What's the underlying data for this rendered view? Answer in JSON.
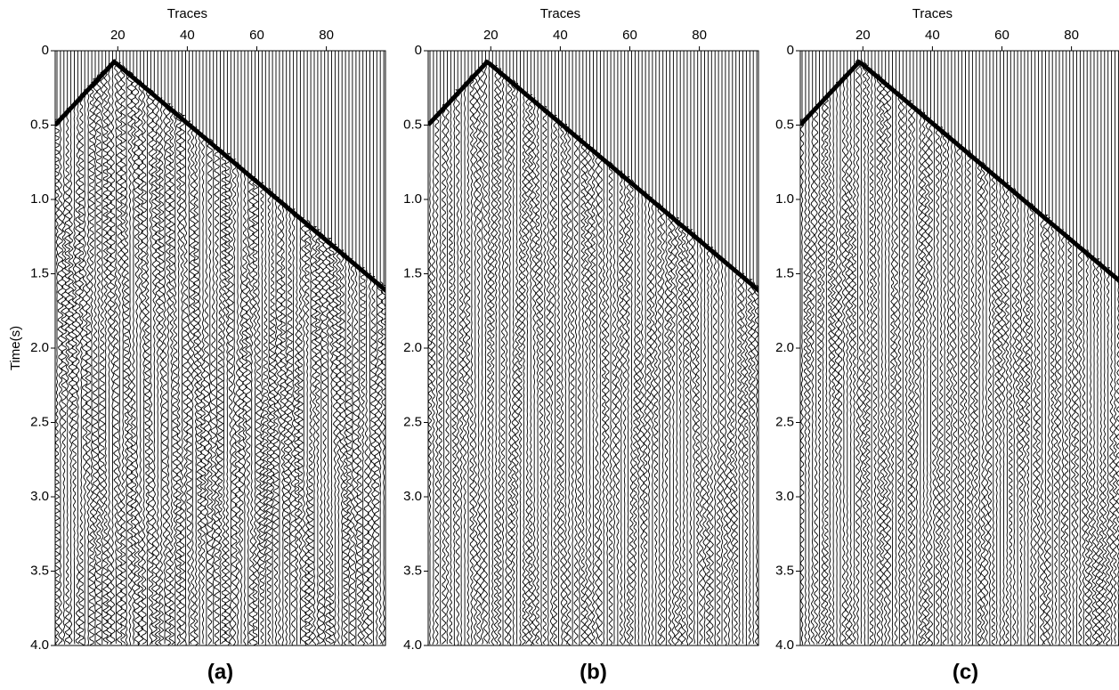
{
  "chart_data": [
    {
      "type": "seismic",
      "x_label": "Traces",
      "y_label": "Time(s)",
      "caption": "(a)",
      "xlim": [
        2,
        97
      ],
      "xticks": [
        20,
        40,
        60,
        80
      ],
      "ylim": [
        0,
        4
      ],
      "yticks": [
        0,
        0.5,
        {
          "value": 1,
          "label": "1.0"
        },
        1.5,
        {
          "value": 2,
          "label": "2.0"
        },
        2.5,
        {
          "value": 3,
          "label": "3.0"
        },
        3.5,
        {
          "value": 4,
          "label": "4.0"
        }
      ]
    },
    {
      "type": "seismic",
      "x_label": "Traces",
      "caption": "(b)",
      "xlim": [
        2,
        97
      ],
      "xticks": [
        20,
        40,
        60,
        80
      ],
      "ylim": [
        0,
        4
      ],
      "yticks": [
        0,
        0.5,
        {
          "value": 1,
          "label": "1.0"
        },
        1.5,
        {
          "value": 2,
          "label": "2.0"
        },
        2.5,
        {
          "value": 3,
          "label": "3.0"
        },
        3.5,
        {
          "value": 4,
          "label": "4.0"
        }
      ]
    },
    {
      "type": "seismic",
      "x_label": "Traces",
      "caption": "(c)",
      "xlim": [
        2,
        97
      ],
      "xticks": [
        20,
        40,
        60,
        80
      ],
      "ylim": [
        0,
        4
      ],
      "yticks": [
        0,
        0.5,
        {
          "value": 1,
          "label": "1.0"
        },
        1.5,
        {
          "value": 2,
          "label": "2.0"
        },
        2.5,
        {
          "value": 3,
          "label": "3.0"
        },
        3.5,
        {
          "value": 4,
          "label": "4.0"
        }
      ]
    }
  ]
}
